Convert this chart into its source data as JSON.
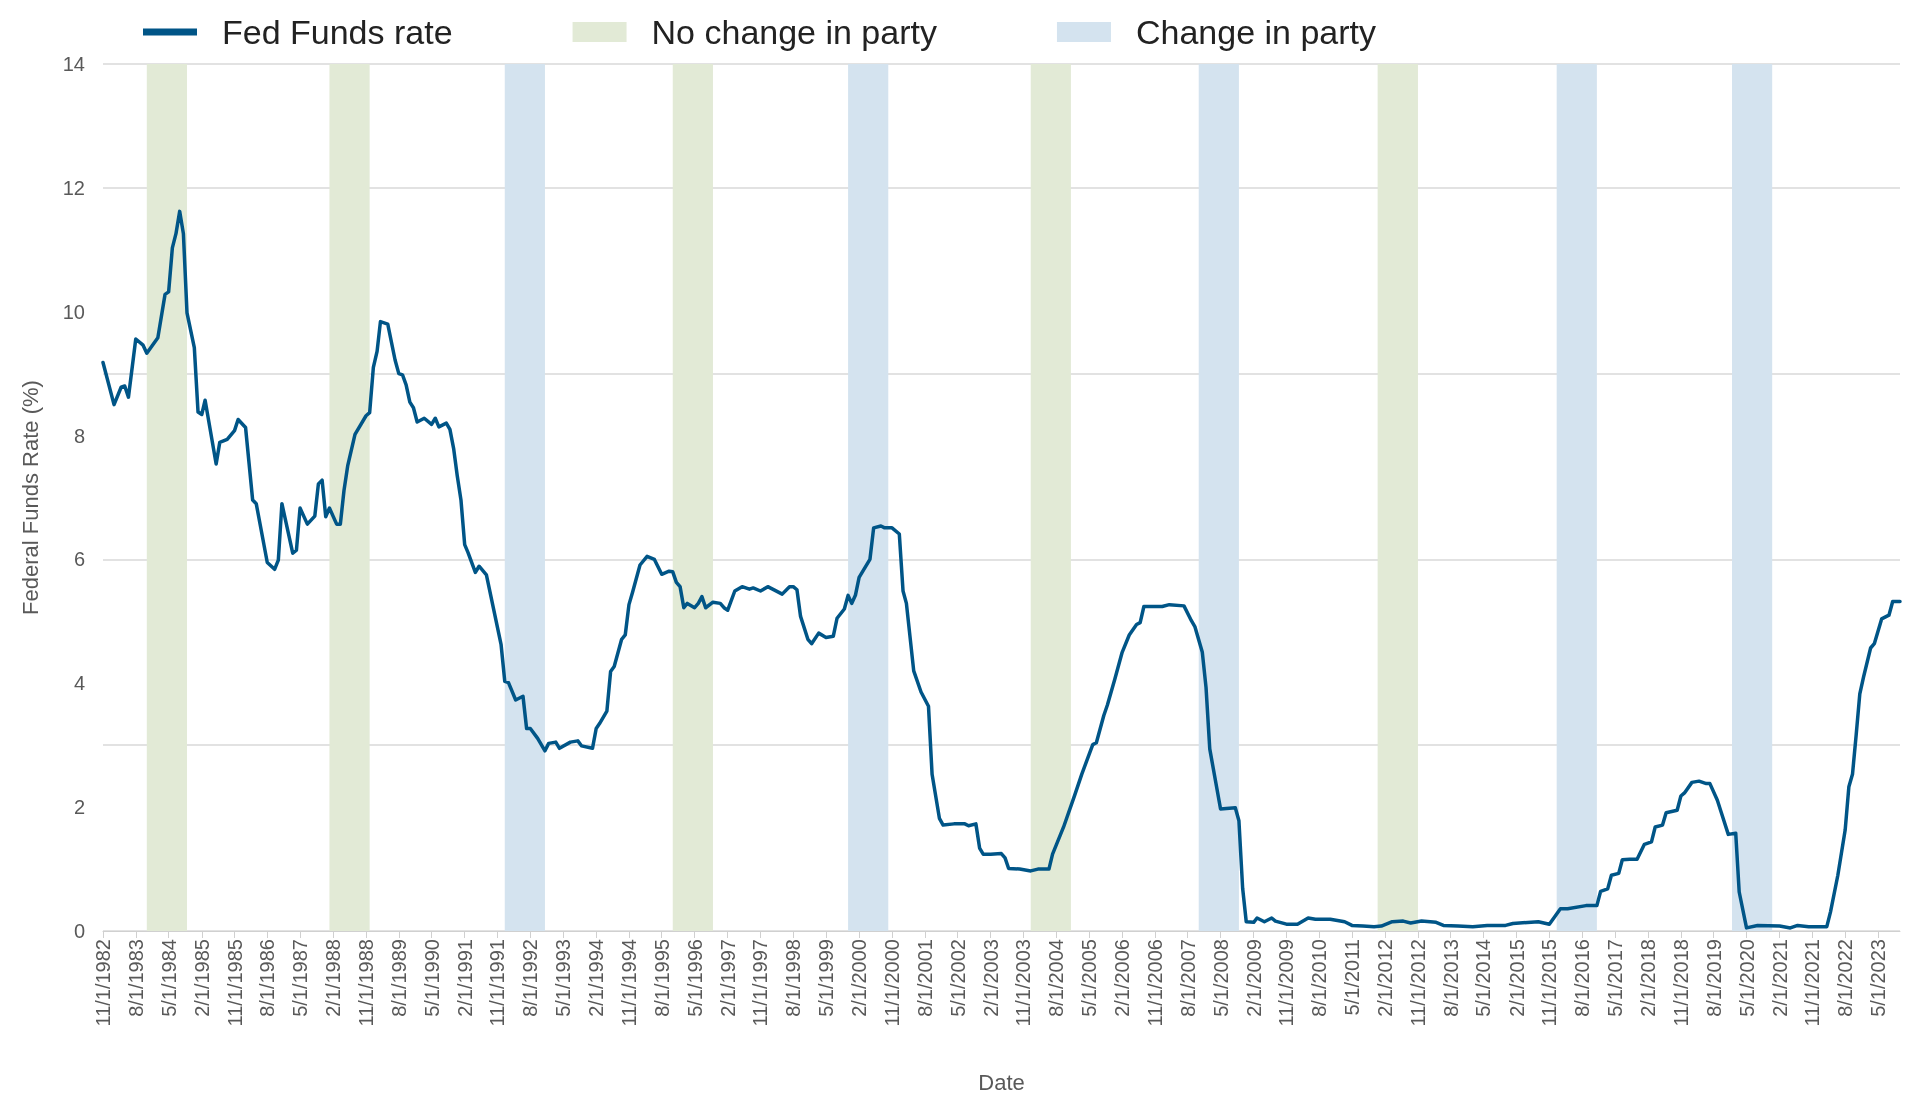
{
  "chart_data": {
    "type": "line",
    "xlabel": "Date",
    "ylabel": "Federal Funds Rate (%)",
    "legend": "top left",
    "grid": "y",
    "marker": "none",
    "line_style": "solid",
    "xlim": [
      "1982-11",
      "2023-11"
    ],
    "ylim": [
      0,
      14
    ],
    "yticks": [
      0,
      2,
      4,
      6,
      8,
      10,
      12,
      14
    ],
    "xticks": [
      {
        "value": "1982-11",
        "label": "11/1/1982"
      },
      {
        "value": "1983-08",
        "label": "8/1/1983"
      },
      {
        "value": "1984-05",
        "label": "5/1/1984"
      },
      {
        "value": "1985-02",
        "label": "2/1/1985"
      },
      {
        "value": "1985-11",
        "label": "11/1/1985"
      },
      {
        "value": "1986-08",
        "label": "8/1/1986"
      },
      {
        "value": "1987-05",
        "label": "5/1/1987"
      },
      {
        "value": "1988-02",
        "label": "2/1/1988"
      },
      {
        "value": "1988-11",
        "label": "11/1/1988"
      },
      {
        "value": "1989-08",
        "label": "8/1/1989"
      },
      {
        "value": "1990-05",
        "label": "5/1/1990"
      },
      {
        "value": "1991-02",
        "label": "2/1/1991"
      },
      {
        "value": "1991-11",
        "label": "11/1/1991"
      },
      {
        "value": "1992-08",
        "label": "8/1/1992"
      },
      {
        "value": "1993-05",
        "label": "5/1/1993"
      },
      {
        "value": "1994-02",
        "label": "2/1/1994"
      },
      {
        "value": "1994-11",
        "label": "11/1/1994"
      },
      {
        "value": "1995-08",
        "label": "8/1/1995"
      },
      {
        "value": "1996-05",
        "label": "5/1/1996"
      },
      {
        "value": "1997-02",
        "label": "2/1/1997"
      },
      {
        "value": "1997-11",
        "label": "11/1/1997"
      },
      {
        "value": "1998-08",
        "label": "8/1/1998"
      },
      {
        "value": "1999-05",
        "label": "5/1/1999"
      },
      {
        "value": "2000-02",
        "label": "2/1/2000"
      },
      {
        "value": "2000-11",
        "label": "11/1/2000"
      },
      {
        "value": "2001-08",
        "label": "8/1/2001"
      },
      {
        "value": "2002-05",
        "label": "5/1/2002"
      },
      {
        "value": "2003-02",
        "label": "2/1/2003"
      },
      {
        "value": "2003-11",
        "label": "11/1/2003"
      },
      {
        "value": "2004-08",
        "label": "8/1/2004"
      },
      {
        "value": "2005-05",
        "label": "5/1/2005"
      },
      {
        "value": "2006-02",
        "label": "2/1/2006"
      },
      {
        "value": "2006-11",
        "label": "11/1/2006"
      },
      {
        "value": "2007-08",
        "label": "8/1/2007"
      },
      {
        "value": "2008-05",
        "label": "5/1/2008"
      },
      {
        "value": "2009-02",
        "label": "2/1/2009"
      },
      {
        "value": "2009-11",
        "label": "11/1/2009"
      },
      {
        "value": "2010-08",
        "label": "8/1/2010"
      },
      {
        "value": "2011-05",
        "label": "5/1/2011"
      },
      {
        "value": "2012-02",
        "label": "2/1/2012"
      },
      {
        "value": "2012-11",
        "label": "11/1/2012"
      },
      {
        "value": "2013-08",
        "label": "8/1/2013"
      },
      {
        "value": "2014-05",
        "label": "5/1/2014"
      },
      {
        "value": "2015-02",
        "label": "2/1/2015"
      },
      {
        "value": "2015-11",
        "label": "11/1/2015"
      },
      {
        "value": "2016-08",
        "label": "8/1/2016"
      },
      {
        "value": "2017-05",
        "label": "5/1/2017"
      },
      {
        "value": "2018-02",
        "label": "2/1/2018"
      },
      {
        "value": "2018-11",
        "label": "11/1/2018"
      },
      {
        "value": "2019-08",
        "label": "8/1/2019"
      },
      {
        "value": "2020-05",
        "label": "5/1/2020"
      },
      {
        "value": "2021-02",
        "label": "2/1/2021"
      },
      {
        "value": "2021-11",
        "label": "11/1/2021"
      },
      {
        "value": "2022-08",
        "label": "8/1/2022"
      },
      {
        "value": "2023-05",
        "label": "5/1/2023"
      }
    ],
    "bands": [
      {
        "axis": "x",
        "from": "1983-11",
        "to": "1984-10",
        "label": "No change in party",
        "color": "#e2ead6"
      },
      {
        "axis": "x",
        "from": "1988-01",
        "to": "1988-12",
        "color": "#e2ead6"
      },
      {
        "axis": "x",
        "from": "1992-01",
        "to": "1992-12",
        "label": "Change in party",
        "color": "#d4e3ef"
      },
      {
        "axis": "x",
        "from": "1995-11",
        "to": "1996-10",
        "color": "#e2ead6"
      },
      {
        "axis": "x",
        "from": "1999-11",
        "to": "2000-10",
        "color": "#d4e3ef"
      },
      {
        "axis": "x",
        "from": "2004-01",
        "to": "2004-12",
        "color": "#e2ead6"
      },
      {
        "axis": "x",
        "from": "2007-11",
        "to": "2008-10",
        "color": "#d4e3ef"
      },
      {
        "axis": "x",
        "from": "2011-12",
        "to": "2012-11",
        "color": "#e2ead6"
      },
      {
        "axis": "x",
        "from": "2016-01",
        "to": "2016-12",
        "color": "#d4e3ef"
      },
      {
        "axis": "x",
        "from": "2020-01",
        "to": "2020-12",
        "color": "#d4e3ef"
      }
    ],
    "series": [
      {
        "name": "Fed Funds rate",
        "color": "#005587",
        "x": [
          "1982-11",
          "1983-02",
          "1983-04",
          "1983-05",
          "1983-06",
          "1983-08",
          "1983-10",
          "1983-11",
          "1984-02",
          "1984-04",
          "1984-05",
          "1984-06",
          "1984-07",
          "1984-08",
          "1984-09",
          "1984-10",
          "1984-12",
          "1985-01",
          "1985-02",
          "1985-03",
          "1985-06",
          "1985-07",
          "1985-09",
          "1985-11",
          "1985-12",
          "1986-02",
          "1986-04",
          "1986-05",
          "1986-08",
          "1986-10",
          "1986-11",
          "1986-12",
          "1987-03",
          "1987-04",
          "1987-05",
          "1987-07",
          "1987-09",
          "1987-10",
          "1987-11",
          "1987-12",
          "1988-01",
          "1988-03",
          "1988-04",
          "1988-05",
          "1988-06",
          "1988-08",
          "1988-11",
          "1988-12",
          "1989-01",
          "1989-02",
          "1989-03",
          "1989-05",
          "1989-07",
          "1989-08",
          "1989-09",
          "1989-10",
          "1989-11",
          "1989-12",
          "1990-01",
          "1990-03",
          "1990-05",
          "1990-06",
          "1990-07",
          "1990-09",
          "1990-10",
          "1990-11",
          "1990-12",
          "1991-01",
          "1991-02",
          "1991-03",
          "1991-05",
          "1991-06",
          "1991-08",
          "1991-10",
          "1991-12",
          "1992-01",
          "1992-02",
          "1992-04",
          "1992-06",
          "1992-07",
          "1992-08",
          "1992-10",
          "1992-12",
          "1993-01",
          "1993-03",
          "1993-04",
          "1993-07",
          "1993-09",
          "1993-10",
          "1994-01",
          "1994-02",
          "1994-03",
          "1994-05",
          "1994-06",
          "1994-07",
          "1994-09",
          "1994-10",
          "1994-11",
          "1994-12",
          "1995-02",
          "1995-04",
          "1995-06",
          "1995-08",
          "1995-10",
          "1995-11",
          "1995-12",
          "1996-01",
          "1996-02",
          "1996-03",
          "1996-05",
          "1996-06",
          "1996-07",
          "1996-08",
          "1996-10",
          "1996-12",
          "1997-01",
          "1997-02",
          "1997-04",
          "1997-06",
          "1997-08",
          "1997-09",
          "1997-11",
          "1998-01",
          "1998-05",
          "1998-07",
          "1998-08",
          "1998-09",
          "1998-10",
          "1998-12",
          "1999-01",
          "1999-03",
          "1999-05",
          "1999-07",
          "1999-08",
          "1999-10",
          "1999-11",
          "1999-12",
          "2000-01",
          "2000-02",
          "2000-05",
          "2000-06",
          "2000-08",
          "2000-09",
          "2000-11",
          "2001-01",
          "2001-02",
          "2001-03",
          "2001-05",
          "2001-07",
          "2001-09",
          "2001-10",
          "2001-12",
          "2002-01",
          "2002-04",
          "2002-07",
          "2002-08",
          "2002-10",
          "2002-11",
          "2002-12",
          "2003-02",
          "2003-05",
          "2003-06",
          "2003-07",
          "2003-10",
          "2004-01",
          "2004-03",
          "2004-06",
          "2004-07",
          "2004-10",
          "2005-01",
          "2005-03",
          "2005-06",
          "2005-07",
          "2005-09",
          "2005-10",
          "2005-12",
          "2006-02",
          "2006-04",
          "2006-06",
          "2006-07",
          "2006-08",
          "2007-01",
          "2007-03",
          "2007-07",
          "2007-09",
          "2007-10",
          "2007-12",
          "2008-01",
          "2008-02",
          "2008-05",
          "2008-09",
          "2008-10",
          "2008-11",
          "2008-12",
          "2009-02",
          "2009-03",
          "2009-05",
          "2009-07",
          "2009-08",
          "2009-11",
          "2010-02",
          "2010-05",
          "2010-07",
          "2010-11",
          "2011-03",
          "2011-05",
          "2011-08",
          "2011-11",
          "2012-01",
          "2012-04",
          "2012-07",
          "2012-09",
          "2012-12",
          "2013-04",
          "2013-06",
          "2013-10",
          "2014-02",
          "2014-06",
          "2014-11",
          "2015-01",
          "2015-08",
          "2015-11",
          "2016-02",
          "2016-04",
          "2016-09",
          "2016-12",
          "2017-01",
          "2017-03",
          "2017-04",
          "2017-06",
          "2017-07",
          "2017-09",
          "2017-11",
          "2018-01",
          "2018-03",
          "2018-04",
          "2018-06",
          "2018-07",
          "2018-10",
          "2018-11",
          "2018-12",
          "2019-02",
          "2019-04",
          "2019-06",
          "2019-07",
          "2019-09",
          "2019-10",
          "2019-12",
          "2020-02",
          "2020-03",
          "2020-05",
          "2020-08",
          "2021-02",
          "2021-05",
          "2021-07",
          "2021-10",
          "2022-03",
          "2022-04",
          "2022-06",
          "2022-08",
          "2022-09",
          "2022-10",
          "2022-11",
          "2022-12",
          "2023-01",
          "2023-03",
          "2023-04",
          "2023-06",
          "2023-08",
          "2023-09",
          "2023-11"
        ],
        "values": [
          9.18,
          8.5,
          8.78,
          8.8,
          8.62,
          9.56,
          9.46,
          9.33,
          9.58,
          10.28,
          10.32,
          11.03,
          11.26,
          11.62,
          11.26,
          9.98,
          9.42,
          8.38,
          8.34,
          8.57,
          7.54,
          7.89,
          7.94,
          8.08,
          8.26,
          8.13,
          6.96,
          6.9,
          5.95,
          5.84,
          5.99,
          6.9,
          6.1,
          6.15,
          6.83,
          6.57,
          6.7,
          7.22,
          7.28,
          6.69,
          6.83,
          6.57,
          6.57,
          7.11,
          7.51,
          8.02,
          8.32,
          8.37,
          9.1,
          9.36,
          9.84,
          9.8,
          9.22,
          9.0,
          8.98,
          8.82,
          8.54,
          8.45,
          8.22,
          8.28,
          8.18,
          8.28,
          8.14,
          8.2,
          8.1,
          7.79,
          7.35,
          6.96,
          6.24,
          6.11,
          5.79,
          5.89,
          5.75,
          5.19,
          4.63,
          4.03,
          4.01,
          3.73,
          3.79,
          3.27,
          3.27,
          3.11,
          2.91,
          3.03,
          3.05,
          2.95,
          3.05,
          3.07,
          2.99,
          2.95,
          3.27,
          3.35,
          3.55,
          4.19,
          4.27,
          4.71,
          4.78,
          5.27,
          5.47,
          5.91,
          6.05,
          6.0,
          5.76,
          5.81,
          5.8,
          5.63,
          5.56,
          5.22,
          5.29,
          5.22,
          5.29,
          5.4,
          5.22,
          5.31,
          5.29,
          5.22,
          5.18,
          5.49,
          5.56,
          5.52,
          5.54,
          5.49,
          5.56,
          5.44,
          5.56,
          5.56,
          5.51,
          5.08,
          4.71,
          4.64,
          4.81,
          4.74,
          4.76,
          5.05,
          5.2,
          5.42,
          5.29,
          5.42,
          5.71,
          6.0,
          6.51,
          6.54,
          6.51,
          6.51,
          6.41,
          5.49,
          5.29,
          4.2,
          3.86,
          3.63,
          2.53,
          1.82,
          1.71,
          1.73,
          1.73,
          1.7,
          1.73,
          1.34,
          1.24,
          1.24,
          1.25,
          1.18,
          1.01,
          1.0,
          0.97,
          1.0,
          1.0,
          1.24,
          1.68,
          2.19,
          2.53,
          3.01,
          3.04,
          3.48,
          3.65,
          4.06,
          4.5,
          4.78,
          4.95,
          4.98,
          5.24,
          5.24,
          5.27,
          5.25,
          5.01,
          4.91,
          4.5,
          3.93,
          2.94,
          1.97,
          1.99,
          1.78,
          0.69,
          0.15,
          0.14,
          0.21,
          0.15,
          0.21,
          0.16,
          0.11,
          0.11,
          0.21,
          0.19,
          0.19,
          0.15,
          0.09,
          0.08,
          0.07,
          0.08,
          0.15,
          0.16,
          0.13,
          0.16,
          0.14,
          0.09,
          0.08,
          0.07,
          0.09,
          0.09,
          0.12,
          0.15,
          0.11,
          0.36,
          0.36,
          0.41,
          0.41,
          0.64,
          0.68,
          0.9,
          0.93,
          1.15,
          1.16,
          1.16,
          1.4,
          1.44,
          1.68,
          1.71,
          1.91,
          1.95,
          2.18,
          2.23,
          2.4,
          2.42,
          2.38,
          2.38,
          2.11,
          1.93,
          1.56,
          1.58,
          0.63,
          0.05,
          0.09,
          0.08,
          0.05,
          0.09,
          0.07,
          0.07,
          0.31,
          0.9,
          1.63,
          2.33,
          2.53,
          3.17,
          3.83,
          4.1,
          4.57,
          4.64,
          5.04,
          5.1,
          5.32,
          5.32
        ]
      }
    ]
  }
}
